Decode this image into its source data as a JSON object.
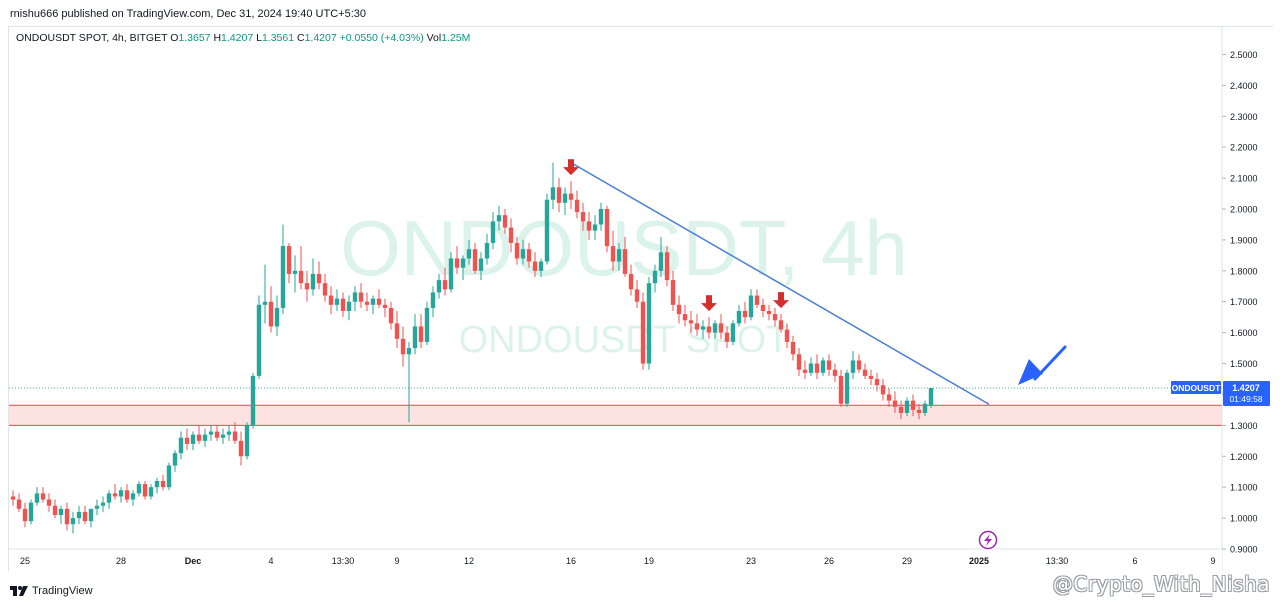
{
  "header": {
    "published_text": "rnishu666 published on TradingView.com, Dec 31, 2024 19:40 UTC+5:30"
  },
  "symbol_bar": {
    "symbol": "ONDOUSDT SPOT, 4h, BITGET",
    "open_label": "O",
    "open": "1.3657",
    "high_label": "H",
    "high": "1.4207",
    "low_label": "L",
    "low": "1.3561",
    "close_label": "C",
    "close": "1.4207",
    "change": "+0.0550 (+4.03%)",
    "vol_label": "Vol",
    "vol": "1.25M"
  },
  "watermark": {
    "big": "ONDOUSDT, 4h",
    "small": "ONDOUSDT SPOT"
  },
  "price_tag": {
    "symbol": "ONDOUSDT",
    "price": "1.4207",
    "countdown": "01:49:58"
  },
  "footer": {
    "brand": "TradingView",
    "handle": "@Crypto_With_Nisha"
  },
  "colors": {
    "up": "#26a69a",
    "down": "#ef5350",
    "trendline": "#4a7fd6",
    "arrow_red": "#d32f2f",
    "arrow_blue": "#2962ff",
    "zone_fill": "#fde2e2",
    "zone_border": "#e04848",
    "tag_bg": "#2962ff"
  },
  "chart_data": {
    "type": "candlestick",
    "title": "",
    "y_ticks": [
      "2.5000",
      "2.4000",
      "2.3000",
      "2.2000",
      "2.1000",
      "2.0000",
      "1.9000",
      "1.8000",
      "1.7000",
      "1.6000",
      "1.5000",
      "1.4000",
      "1.3000",
      "1.2000",
      "1.1000",
      "1.0000",
      "0.9000"
    ],
    "ylim": [
      0.9,
      2.55
    ],
    "x_ticks": [
      {
        "label": "25",
        "i": 2
      },
      {
        "label": "28",
        "i": 18
      },
      {
        "label": "Dec",
        "i": 30
      },
      {
        "label": "4",
        "i": 43
      },
      {
        "label": "13:30",
        "i": 55
      },
      {
        "label": "9",
        "i": 64
      },
      {
        "label": "12",
        "i": 76
      },
      {
        "label": "16",
        "i": 93
      },
      {
        "label": "19",
        "i": 106
      },
      {
        "label": "23",
        "i": 123
      },
      {
        "label": "26",
        "i": 136
      },
      {
        "label": "29",
        "i": 149
      },
      {
        "label": "2025",
        "i": 161
      },
      {
        "label": "13:30",
        "i": 174
      },
      {
        "label": "6",
        "i": 187
      },
      {
        "label": "9",
        "i": 200
      }
    ],
    "x_tick_bold": [
      "Dec",
      "2025"
    ],
    "candles": [
      {
        "o": 1.07,
        "h": 1.09,
        "l": 1.04,
        "c": 1.06
      },
      {
        "o": 1.06,
        "h": 1.08,
        "l": 1.02,
        "c": 1.03
      },
      {
        "o": 1.03,
        "h": 1.05,
        "l": 0.97,
        "c": 0.99
      },
      {
        "o": 0.99,
        "h": 1.06,
        "l": 0.98,
        "c": 1.05
      },
      {
        "o": 1.05,
        "h": 1.1,
        "l": 1.04,
        "c": 1.08
      },
      {
        "o": 1.08,
        "h": 1.1,
        "l": 1.05,
        "c": 1.06
      },
      {
        "o": 1.06,
        "h": 1.08,
        "l": 1.02,
        "c": 1.04
      },
      {
        "o": 1.04,
        "h": 1.06,
        "l": 1.0,
        "c": 1.01
      },
      {
        "o": 1.01,
        "h": 1.04,
        "l": 0.98,
        "c": 1.03
      },
      {
        "o": 1.03,
        "h": 1.05,
        "l": 0.96,
        "c": 0.98
      },
      {
        "o": 0.98,
        "h": 1.02,
        "l": 0.95,
        "c": 1.0
      },
      {
        "o": 1.0,
        "h": 1.04,
        "l": 0.98,
        "c": 1.02
      },
      {
        "o": 1.02,
        "h": 1.04,
        "l": 0.98,
        "c": 0.99
      },
      {
        "o": 0.99,
        "h": 1.03,
        "l": 0.97,
        "c": 1.03
      },
      {
        "o": 1.03,
        "h": 1.06,
        "l": 1.01,
        "c": 1.04
      },
      {
        "o": 1.04,
        "h": 1.07,
        "l": 1.02,
        "c": 1.05
      },
      {
        "o": 1.05,
        "h": 1.09,
        "l": 1.03,
        "c": 1.08
      },
      {
        "o": 1.08,
        "h": 1.11,
        "l": 1.06,
        "c": 1.07
      },
      {
        "o": 1.07,
        "h": 1.1,
        "l": 1.05,
        "c": 1.09
      },
      {
        "o": 1.09,
        "h": 1.11,
        "l": 1.05,
        "c": 1.06
      },
      {
        "o": 1.06,
        "h": 1.09,
        "l": 1.04,
        "c": 1.08
      },
      {
        "o": 1.08,
        "h": 1.12,
        "l": 1.07,
        "c": 1.11
      },
      {
        "o": 1.11,
        "h": 1.12,
        "l": 1.06,
        "c": 1.07
      },
      {
        "o": 1.07,
        "h": 1.11,
        "l": 1.06,
        "c": 1.1
      },
      {
        "o": 1.1,
        "h": 1.13,
        "l": 1.08,
        "c": 1.12
      },
      {
        "o": 1.12,
        "h": 1.14,
        "l": 1.09,
        "c": 1.1
      },
      {
        "o": 1.1,
        "h": 1.18,
        "l": 1.09,
        "c": 1.17
      },
      {
        "o": 1.17,
        "h": 1.22,
        "l": 1.15,
        "c": 1.21
      },
      {
        "o": 1.21,
        "h": 1.28,
        "l": 1.19,
        "c": 1.26
      },
      {
        "o": 1.26,
        "h": 1.29,
        "l": 1.22,
        "c": 1.24
      },
      {
        "o": 1.24,
        "h": 1.28,
        "l": 1.22,
        "c": 1.27
      },
      {
        "o": 1.27,
        "h": 1.3,
        "l": 1.24,
        "c": 1.25
      },
      {
        "o": 1.25,
        "h": 1.29,
        "l": 1.23,
        "c": 1.27
      },
      {
        "o": 1.27,
        "h": 1.3,
        "l": 1.25,
        "c": 1.28
      },
      {
        "o": 1.28,
        "h": 1.3,
        "l": 1.25,
        "c": 1.26
      },
      {
        "o": 1.26,
        "h": 1.29,
        "l": 1.24,
        "c": 1.27
      },
      {
        "o": 1.27,
        "h": 1.3,
        "l": 1.25,
        "c": 1.28
      },
      {
        "o": 1.28,
        "h": 1.31,
        "l": 1.24,
        "c": 1.25
      },
      {
        "o": 1.25,
        "h": 1.28,
        "l": 1.17,
        "c": 1.2
      },
      {
        "o": 1.2,
        "h": 1.31,
        "l": 1.19,
        "c": 1.3
      },
      {
        "o": 1.3,
        "h": 1.47,
        "l": 1.29,
        "c": 1.46
      },
      {
        "o": 1.46,
        "h": 1.72,
        "l": 1.45,
        "c": 1.69
      },
      {
        "o": 1.69,
        "h": 1.82,
        "l": 1.63,
        "c": 1.7
      },
      {
        "o": 1.7,
        "h": 1.75,
        "l": 1.6,
        "c": 1.62
      },
      {
        "o": 1.62,
        "h": 1.72,
        "l": 1.59,
        "c": 1.68
      },
      {
        "o": 1.68,
        "h": 1.95,
        "l": 1.66,
        "c": 1.88
      },
      {
        "o": 1.88,
        "h": 1.89,
        "l": 1.76,
        "c": 1.79
      },
      {
        "o": 1.79,
        "h": 1.85,
        "l": 1.73,
        "c": 1.8
      },
      {
        "o": 1.8,
        "h": 1.88,
        "l": 1.74,
        "c": 1.76
      },
      {
        "o": 1.76,
        "h": 1.8,
        "l": 1.7,
        "c": 1.74
      },
      {
        "o": 1.74,
        "h": 1.84,
        "l": 1.72,
        "c": 1.79
      },
      {
        "o": 1.79,
        "h": 1.83,
        "l": 1.74,
        "c": 1.76
      },
      {
        "o": 1.76,
        "h": 1.79,
        "l": 1.7,
        "c": 1.72
      },
      {
        "o": 1.72,
        "h": 1.75,
        "l": 1.66,
        "c": 1.69
      },
      {
        "o": 1.69,
        "h": 1.74,
        "l": 1.67,
        "c": 1.71
      },
      {
        "o": 1.71,
        "h": 1.73,
        "l": 1.65,
        "c": 1.67
      },
      {
        "o": 1.67,
        "h": 1.72,
        "l": 1.64,
        "c": 1.7
      },
      {
        "o": 1.7,
        "h": 1.75,
        "l": 1.67,
        "c": 1.73
      },
      {
        "o": 1.73,
        "h": 1.76,
        "l": 1.68,
        "c": 1.7
      },
      {
        "o": 1.7,
        "h": 1.73,
        "l": 1.67,
        "c": 1.69
      },
      {
        "o": 1.69,
        "h": 1.72,
        "l": 1.66,
        "c": 1.71
      },
      {
        "o": 1.71,
        "h": 1.74,
        "l": 1.68,
        "c": 1.69
      },
      {
        "o": 1.69,
        "h": 1.71,
        "l": 1.65,
        "c": 1.68
      },
      {
        "o": 1.68,
        "h": 1.7,
        "l": 1.61,
        "c": 1.63
      },
      {
        "o": 1.63,
        "h": 1.67,
        "l": 1.55,
        "c": 1.58
      },
      {
        "o": 1.58,
        "h": 1.62,
        "l": 1.49,
        "c": 1.53
      },
      {
        "o": 1.53,
        "h": 1.57,
        "l": 1.31,
        "c": 1.55
      },
      {
        "o": 1.55,
        "h": 1.66,
        "l": 1.53,
        "c": 1.62
      },
      {
        "o": 1.62,
        "h": 1.66,
        "l": 1.55,
        "c": 1.57
      },
      {
        "o": 1.57,
        "h": 1.7,
        "l": 1.56,
        "c": 1.68
      },
      {
        "o": 1.68,
        "h": 1.75,
        "l": 1.65,
        "c": 1.73
      },
      {
        "o": 1.73,
        "h": 1.79,
        "l": 1.71,
        "c": 1.77
      },
      {
        "o": 1.77,
        "h": 1.81,
        "l": 1.72,
        "c": 1.74
      },
      {
        "o": 1.74,
        "h": 1.86,
        "l": 1.73,
        "c": 1.84
      },
      {
        "o": 1.84,
        "h": 1.88,
        "l": 1.79,
        "c": 1.81
      },
      {
        "o": 1.81,
        "h": 1.85,
        "l": 1.77,
        "c": 1.84
      },
      {
        "o": 1.84,
        "h": 1.9,
        "l": 1.82,
        "c": 1.87
      },
      {
        "o": 1.87,
        "h": 1.89,
        "l": 1.79,
        "c": 1.8
      },
      {
        "o": 1.8,
        "h": 1.86,
        "l": 1.77,
        "c": 1.84
      },
      {
        "o": 1.84,
        "h": 1.92,
        "l": 1.82,
        "c": 1.89
      },
      {
        "o": 1.89,
        "h": 1.99,
        "l": 1.87,
        "c": 1.96
      },
      {
        "o": 1.96,
        "h": 2.01,
        "l": 1.93,
        "c": 1.98
      },
      {
        "o": 1.98,
        "h": 2.0,
        "l": 1.92,
        "c": 1.94
      },
      {
        "o": 1.94,
        "h": 1.97,
        "l": 1.86,
        "c": 1.89
      },
      {
        "o": 1.89,
        "h": 1.91,
        "l": 1.82,
        "c": 1.84
      },
      {
        "o": 1.84,
        "h": 1.9,
        "l": 1.82,
        "c": 1.87
      },
      {
        "o": 1.87,
        "h": 1.89,
        "l": 1.81,
        "c": 1.83
      },
      {
        "o": 1.83,
        "h": 1.86,
        "l": 1.78,
        "c": 1.8
      },
      {
        "o": 1.8,
        "h": 1.84,
        "l": 1.78,
        "c": 1.83
      },
      {
        "o": 1.83,
        "h": 2.05,
        "l": 1.82,
        "c": 2.03
      },
      {
        "o": 2.03,
        "h": 2.15,
        "l": 2.0,
        "c": 2.07
      },
      {
        "o": 2.07,
        "h": 2.1,
        "l": 1.99,
        "c": 2.02
      },
      {
        "o": 2.02,
        "h": 2.07,
        "l": 1.98,
        "c": 2.05
      },
      {
        "o": 2.05,
        "h": 2.09,
        "l": 2.0,
        "c": 2.03
      },
      {
        "o": 2.03,
        "h": 2.06,
        "l": 1.97,
        "c": 1.99
      },
      {
        "o": 1.99,
        "h": 2.02,
        "l": 1.93,
        "c": 1.96
      },
      {
        "o": 1.96,
        "h": 1.99,
        "l": 1.9,
        "c": 1.93
      },
      {
        "o": 1.93,
        "h": 1.98,
        "l": 1.9,
        "c": 1.95
      },
      {
        "o": 1.95,
        "h": 2.02,
        "l": 1.93,
        "c": 2.0
      },
      {
        "o": 2.0,
        "h": 2.01,
        "l": 1.86,
        "c": 1.88
      },
      {
        "o": 1.88,
        "h": 1.93,
        "l": 1.8,
        "c": 1.83
      },
      {
        "o": 1.83,
        "h": 1.89,
        "l": 1.8,
        "c": 1.87
      },
      {
        "o": 1.87,
        "h": 1.91,
        "l": 1.78,
        "c": 1.79
      },
      {
        "o": 1.79,
        "h": 1.82,
        "l": 1.72,
        "c": 1.74
      },
      {
        "o": 1.74,
        "h": 1.77,
        "l": 1.68,
        "c": 1.7
      },
      {
        "o": 1.7,
        "h": 1.73,
        "l": 1.48,
        "c": 1.5
      },
      {
        "o": 1.5,
        "h": 1.78,
        "l": 1.48,
        "c": 1.76
      },
      {
        "o": 1.76,
        "h": 1.82,
        "l": 1.73,
        "c": 1.8
      },
      {
        "o": 1.8,
        "h": 1.91,
        "l": 1.78,
        "c": 1.86
      },
      {
        "o": 1.86,
        "h": 1.88,
        "l": 1.75,
        "c": 1.77
      },
      {
        "o": 1.77,
        "h": 1.8,
        "l": 1.67,
        "c": 1.69
      },
      {
        "o": 1.69,
        "h": 1.72,
        "l": 1.63,
        "c": 1.66
      },
      {
        "o": 1.66,
        "h": 1.69,
        "l": 1.62,
        "c": 1.64
      },
      {
        "o": 1.64,
        "h": 1.67,
        "l": 1.6,
        "c": 1.63
      },
      {
        "o": 1.63,
        "h": 1.66,
        "l": 1.59,
        "c": 1.61
      },
      {
        "o": 1.61,
        "h": 1.64,
        "l": 1.58,
        "c": 1.62
      },
      {
        "o": 1.62,
        "h": 1.65,
        "l": 1.58,
        "c": 1.6
      },
      {
        "o": 1.6,
        "h": 1.64,
        "l": 1.58,
        "c": 1.63
      },
      {
        "o": 1.63,
        "h": 1.66,
        "l": 1.58,
        "c": 1.6
      },
      {
        "o": 1.6,
        "h": 1.62,
        "l": 1.55,
        "c": 1.57
      },
      {
        "o": 1.57,
        "h": 1.64,
        "l": 1.56,
        "c": 1.63
      },
      {
        "o": 1.63,
        "h": 1.69,
        "l": 1.62,
        "c": 1.67
      },
      {
        "o": 1.67,
        "h": 1.7,
        "l": 1.63,
        "c": 1.65
      },
      {
        "o": 1.65,
        "h": 1.74,
        "l": 1.64,
        "c": 1.72
      },
      {
        "o": 1.72,
        "h": 1.74,
        "l": 1.68,
        "c": 1.69
      },
      {
        "o": 1.69,
        "h": 1.71,
        "l": 1.65,
        "c": 1.67
      },
      {
        "o": 1.67,
        "h": 1.69,
        "l": 1.64,
        "c": 1.66
      },
      {
        "o": 1.66,
        "h": 1.68,
        "l": 1.62,
        "c": 1.64
      },
      {
        "o": 1.64,
        "h": 1.66,
        "l": 1.6,
        "c": 1.61
      },
      {
        "o": 1.61,
        "h": 1.63,
        "l": 1.55,
        "c": 1.57
      },
      {
        "o": 1.57,
        "h": 1.59,
        "l": 1.51,
        "c": 1.53
      },
      {
        "o": 1.53,
        "h": 1.55,
        "l": 1.46,
        "c": 1.48
      },
      {
        "o": 1.48,
        "h": 1.51,
        "l": 1.45,
        "c": 1.47
      },
      {
        "o": 1.47,
        "h": 1.52,
        "l": 1.46,
        "c": 1.5
      },
      {
        "o": 1.5,
        "h": 1.53,
        "l": 1.45,
        "c": 1.47
      },
      {
        "o": 1.47,
        "h": 1.52,
        "l": 1.46,
        "c": 1.51
      },
      {
        "o": 1.51,
        "h": 1.53,
        "l": 1.46,
        "c": 1.48
      },
      {
        "o": 1.48,
        "h": 1.5,
        "l": 1.44,
        "c": 1.46
      },
      {
        "o": 1.46,
        "h": 1.48,
        "l": 1.36,
        "c": 1.37
      },
      {
        "o": 1.37,
        "h": 1.48,
        "l": 1.36,
        "c": 1.47
      },
      {
        "o": 1.47,
        "h": 1.54,
        "l": 1.45,
        "c": 1.51
      },
      {
        "o": 1.51,
        "h": 1.53,
        "l": 1.47,
        "c": 1.48
      },
      {
        "o": 1.48,
        "h": 1.5,
        "l": 1.45,
        "c": 1.46
      },
      {
        "o": 1.46,
        "h": 1.48,
        "l": 1.43,
        "c": 1.45
      },
      {
        "o": 1.45,
        "h": 1.47,
        "l": 1.41,
        "c": 1.43
      },
      {
        "o": 1.43,
        "h": 1.45,
        "l": 1.38,
        "c": 1.4
      },
      {
        "o": 1.4,
        "h": 1.42,
        "l": 1.36,
        "c": 1.38
      },
      {
        "o": 1.38,
        "h": 1.41,
        "l": 1.34,
        "c": 1.36
      },
      {
        "o": 1.36,
        "h": 1.38,
        "l": 1.32,
        "c": 1.34
      },
      {
        "o": 1.34,
        "h": 1.39,
        "l": 1.33,
        "c": 1.38
      },
      {
        "o": 1.38,
        "h": 1.4,
        "l": 1.33,
        "c": 1.35
      },
      {
        "o": 1.35,
        "h": 1.37,
        "l": 1.32,
        "c": 1.34
      },
      {
        "o": 1.34,
        "h": 1.38,
        "l": 1.33,
        "c": 1.37
      },
      {
        "o": 1.3657,
        "h": 1.4207,
        "l": 1.3561,
        "c": 1.4207
      }
    ],
    "current_price": 1.4207,
    "support_zone": [
      1.3,
      1.365
    ],
    "trendline": {
      "from": {
        "i": 93,
        "price": 2.15
      },
      "to": {
        "i": 156,
        "price": 1.365
      }
    },
    "top_markers_at_candle": [
      93,
      116,
      128
    ],
    "bottom_low": 1.31
  }
}
